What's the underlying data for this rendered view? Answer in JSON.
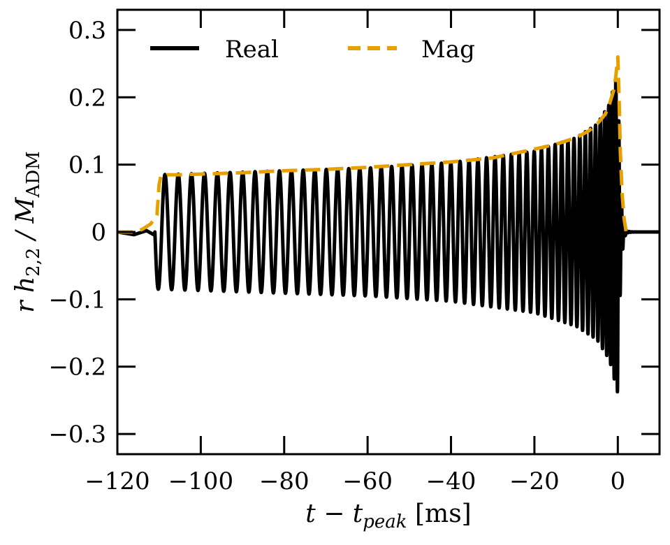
{
  "chart_data": {
    "type": "line",
    "title": "",
    "xlabel": {
      "main": "t − t",
      "sub": "peak",
      "unit": " [ms]"
    },
    "ylabel": {
      "prefix": "r h",
      "sub1": "2,2",
      "mid": " / M",
      "sub2": "ADM"
    },
    "xlim": [
      -120,
      10
    ],
    "ylim": [
      -0.33,
      0.33
    ],
    "x_ticks": [
      -120,
      -100,
      -80,
      -60,
      -40,
      -20,
      0
    ],
    "x_tick_labels": [
      "−120",
      "−100",
      "−80",
      "−60",
      "−40",
      "−20",
      "0"
    ],
    "y_ticks": [
      0.3,
      0.2,
      0.1,
      0,
      -0.1,
      -0.2,
      -0.3
    ],
    "y_tick_labels": [
      "0.3",
      "0.2",
      "0.1",
      "0",
      "−0.1",
      "−0.2",
      "−0.3"
    ],
    "grid": false,
    "legend": {
      "placement": "top",
      "columns": 2
    },
    "series": [
      {
        "name": "Real",
        "color": "#000000",
        "style": "solid",
        "envelope": {
          "t": [
            -110,
            -100,
            -80,
            -60,
            -40,
            -20,
            -10,
            -5,
            -2,
            0,
            1,
            2,
            4
          ],
          "amplitude": [
            0.085,
            0.087,
            0.091,
            0.095,
            0.103,
            0.12,
            0.14,
            0.16,
            0.19,
            0.24,
            0.08,
            0.01,
            0.0
          ]
        },
        "pre_burst": {
          "t": [
            -120,
            -116,
            -113,
            -111
          ],
          "value": [
            0.0,
            -0.004,
            0.002,
            -0.005
          ]
        }
      },
      {
        "name": "Mag",
        "color": "#e6a000",
        "style": "dashed",
        "x": [
          -120,
          -116,
          -114,
          -112,
          -110.5,
          -110,
          -109.6,
          -109,
          -108,
          -105,
          -100,
          -90,
          -80,
          -70,
          -60,
          -50,
          -40,
          -30,
          -20,
          -15,
          -10,
          -7,
          -5,
          -3,
          -2,
          -1,
          -0.5,
          0,
          0.3,
          0.6,
          1.0,
          1.5,
          2.0
        ],
        "values": [
          0.0,
          0.0,
          0.004,
          0.012,
          0.025,
          0.07,
          0.082,
          0.08,
          0.085,
          0.085,
          0.086,
          0.088,
          0.091,
          0.093,
          0.096,
          0.1,
          0.104,
          0.11,
          0.123,
          0.13,
          0.14,
          0.15,
          0.16,
          0.175,
          0.19,
          0.21,
          0.23,
          0.26,
          0.2,
          0.12,
          0.06,
          0.02,
          0.0
        ]
      }
    ]
  }
}
